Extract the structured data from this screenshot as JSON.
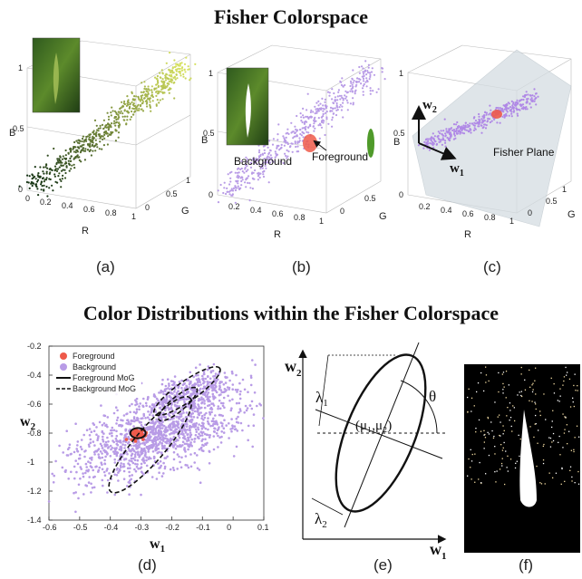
{
  "titles": {
    "top": "Fisher Colorspace",
    "middle": "Color Distributions within the Fisher Colorspace"
  },
  "captions": [
    "(a)",
    "(b)",
    "(c)",
    "(d)",
    "(e)",
    "(f)"
  ],
  "panel_a": {
    "axis_x_label": "R",
    "axis_y_label": "G",
    "axis_z_label": "B",
    "x_ticks": [
      "0",
      "0.2",
      "0.4",
      "0.6",
      "0.8",
      "1"
    ],
    "y_ticks": [
      "0",
      "0.5",
      "1"
    ],
    "z_ticks": [
      "0",
      "0.5",
      "1"
    ]
  },
  "panel_b": {
    "axis_x_label": "R",
    "axis_y_label": "G",
    "axis_z_label": "B",
    "x_ticks": [
      "0.2",
      "0.4",
      "0.6",
      "0.8",
      "1"
    ],
    "y_ticks": [
      "0",
      "0.5"
    ],
    "z_ticks": [
      "0",
      "0.5",
      "1"
    ],
    "label_background": "Background",
    "label_foreground": "Foreground"
  },
  "panel_c": {
    "axis_x_label": "R",
    "axis_y_label": "G",
    "axis_z_label": "B",
    "x_ticks": [
      "0.2",
      "0.4",
      "0.6",
      "0.8",
      "1"
    ],
    "y_ticks": [
      "0",
      "0.5",
      "1"
    ],
    "z_ticks": [
      "0",
      "0.5",
      "1"
    ],
    "vector_w2": "w",
    "vector_w2_sub": "2",
    "vector_w1": "w",
    "vector_w1_sub": "1",
    "plane_label": "Fisher Plane"
  },
  "chart_data": {
    "type": "scatter",
    "xlabel": "w",
    "xlabel_sub": "1",
    "ylabel": "w",
    "ylabel_sub": "2",
    "xlim": [
      -0.6,
      0.1
    ],
    "ylim": [
      -1.4,
      -0.2
    ],
    "x_ticks": [
      "-0.6",
      "-0.5",
      "-0.4",
      "-0.3",
      "-0.2",
      "-0.1",
      "0",
      "0.1"
    ],
    "y_ticks": [
      "-0.2",
      "-0.4",
      "-0.6",
      "-0.8",
      "-1",
      "-1.2",
      "-1.4"
    ],
    "legend": [
      "Foreground",
      "Background",
      "Foreground MoG",
      "Background MoG"
    ],
    "colors": {
      "foreground": "#ee5a4a",
      "background": "#b89be6"
    },
    "background_mog": [
      {
        "cx": -0.27,
        "cy": -0.88,
        "rx": 0.2,
        "ry": 0.11,
        "angle_deg": 50
      },
      {
        "cx": -0.15,
        "cy": -0.51,
        "rx": 0.13,
        "ry": 0.07,
        "angle_deg": 35
      },
      {
        "cx": -0.18,
        "cy": -0.6,
        "rx": 0.08,
        "ry": 0.05,
        "angle_deg": 40
      }
    ],
    "foreground_mog": [
      {
        "cx": -0.31,
        "cy": -0.8,
        "rx": 0.025,
        "ry": 0.035,
        "angle_deg": 0
      }
    ]
  },
  "panel_e": {
    "w2": "w",
    "w2_sub": "2",
    "w1": "w",
    "w1_sub": "1",
    "lambda1": "λ",
    "lambda1_sub": "1",
    "lambda2": "λ",
    "lambda2_sub": "2",
    "theta": "θ",
    "mean_label": "(μ₁,μ₂)"
  }
}
